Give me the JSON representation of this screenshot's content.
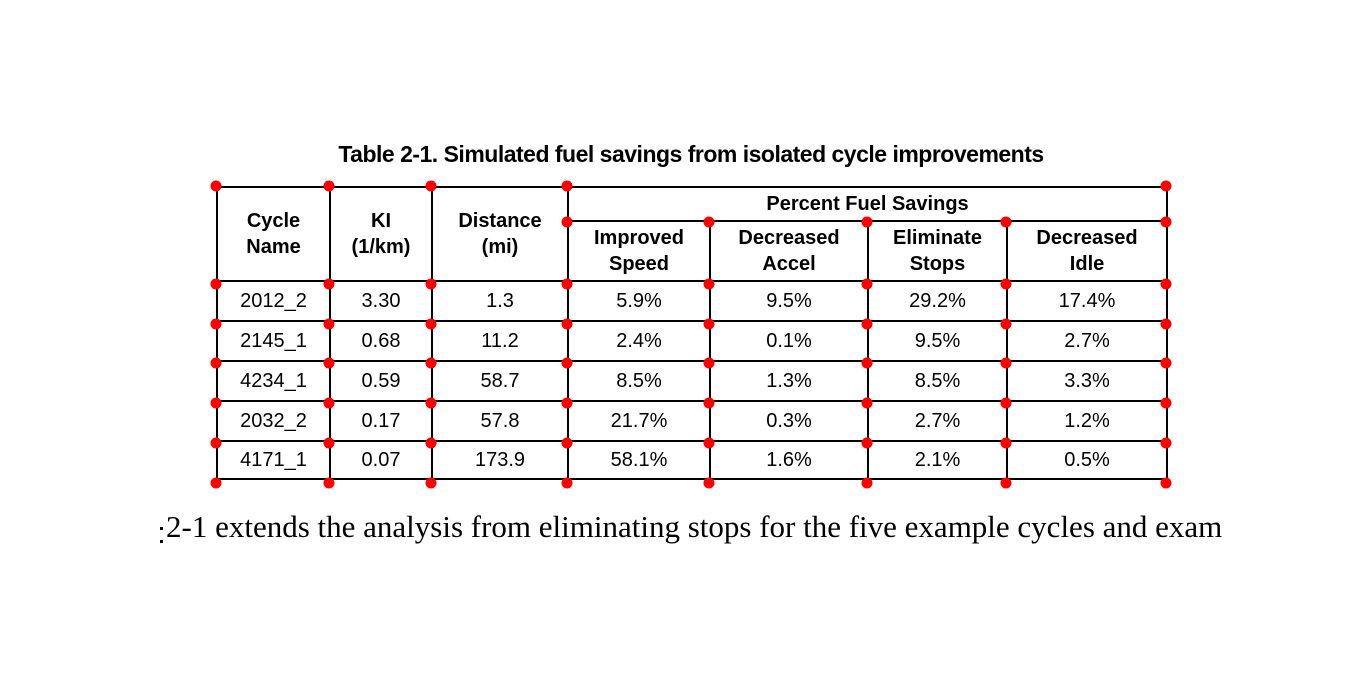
{
  "annotation": {
    "marker_color": "#ff0000",
    "marker_shape": "circle"
  },
  "table": {
    "caption": "Table 2-1. Simulated fuel savings from isolated cycle improvements",
    "header": {
      "cycle_name": "Cycle\nName",
      "ki": "KI\n(1/km)",
      "distance": "Distance\n(mi)",
      "group": "Percent Fuel Savings",
      "improved_speed": "Improved\nSpeed",
      "decreased_accel": "Decreased\nAccel",
      "eliminate_stops": "Eliminate\nStops",
      "decreased_idle": "Decreased\nIdle"
    },
    "rows": [
      [
        "2012_2",
        "3.30",
        "1.3",
        "5.9%",
        "9.5%",
        "29.2%",
        "17.4%"
      ],
      [
        "2145_1",
        "0.68",
        "11.2",
        "2.4%",
        "0.1%",
        "9.5%",
        "2.7%"
      ],
      [
        "4234_1",
        "0.59",
        "58.7",
        "8.5%",
        "1.3%",
        "8.5%",
        "3.3%"
      ],
      [
        "2032_2",
        "0.17",
        "57.8",
        "21.7%",
        "0.3%",
        "2.7%",
        "1.2%"
      ],
      [
        "4171_1",
        "0.07",
        "173.9",
        "58.1%",
        "1.6%",
        "2.1%",
        "0.5%"
      ]
    ]
  },
  "body_text": "2-1 extends the analysis from eliminating stops for the five example cycles and exam"
}
